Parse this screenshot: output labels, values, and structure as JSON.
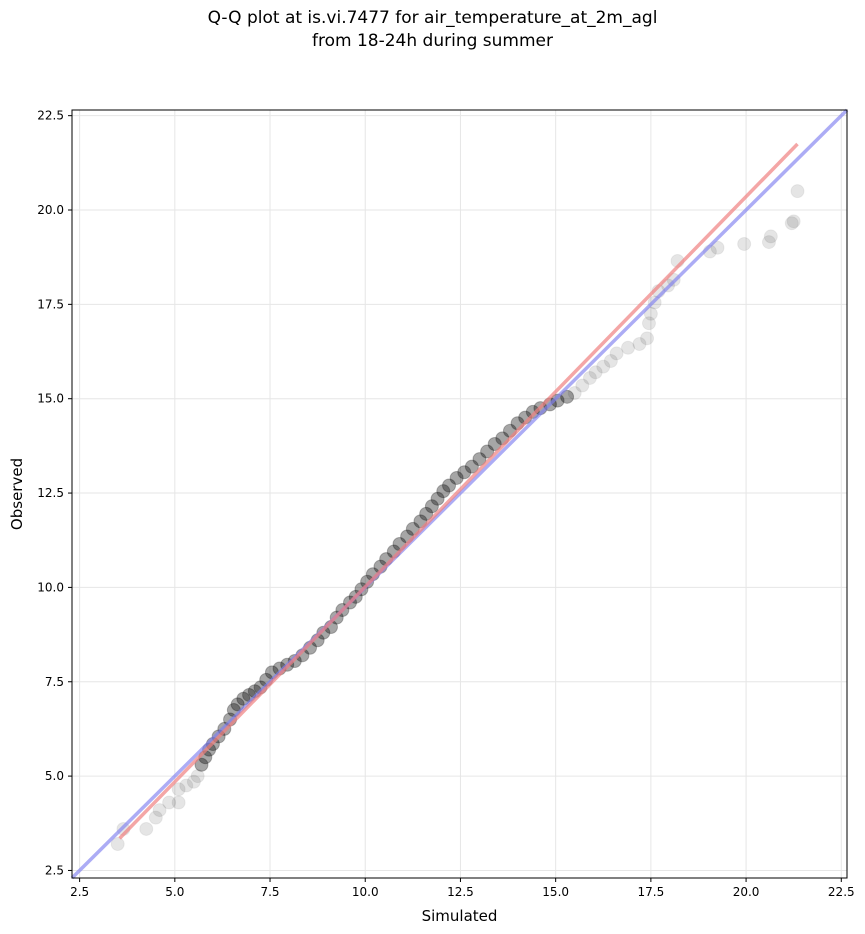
{
  "chart_data": {
    "type": "scatter",
    "title_line1": "Q-Q plot at is.vi.7477 for air_temperature_at_2m_agl",
    "title_line2": "from 18-24h during summer",
    "xlabel": "Simulated",
    "ylabel": "Observed",
    "xlim": [
      2.3,
      22.65
    ],
    "ylim": [
      2.3,
      22.65
    ],
    "xticks": [
      "2.5",
      "5.0",
      "7.5",
      "10.0",
      "12.5",
      "15.0",
      "17.5",
      "20.0",
      "22.5"
    ],
    "yticks": [
      "2.5",
      "5.0",
      "7.5",
      "10.0",
      "12.5",
      "15.0",
      "17.5",
      "20.0",
      "22.5"
    ],
    "tick_values": [
      2.5,
      5.0,
      7.5,
      10.0,
      12.5,
      15.0,
      17.5,
      20.0,
      22.5
    ],
    "grid": true,
    "colors": {
      "points": "#000000",
      "fit_line": "#f08080",
      "identity_line": "#8080f0"
    },
    "fit_line": {
      "x": [
        3.55,
        21.35
      ],
      "y": [
        3.35,
        21.75
      ]
    },
    "identity_line": {
      "x": [
        2.3,
        22.65
      ],
      "y": [
        2.3,
        22.65
      ]
    },
    "points": [
      [
        3.5,
        3.2
      ],
      [
        3.65,
        3.6
      ],
      [
        4.25,
        3.6
      ],
      [
        4.5,
        3.9
      ],
      [
        4.6,
        4.1
      ],
      [
        4.85,
        4.3
      ],
      [
        5.1,
        4.3
      ],
      [
        5.1,
        4.65
      ],
      [
        5.3,
        4.75
      ],
      [
        5.5,
        4.85
      ],
      [
        5.6,
        5.0
      ],
      [
        5.7,
        5.3
      ],
      [
        5.8,
        5.5
      ],
      [
        5.9,
        5.7
      ],
      [
        6.0,
        5.85
      ],
      [
        6.15,
        6.05
      ],
      [
        6.3,
        6.25
      ],
      [
        6.45,
        6.5
      ],
      [
        6.55,
        6.75
      ],
      [
        6.65,
        6.9
      ],
      [
        6.8,
        7.05
      ],
      [
        6.95,
        7.15
      ],
      [
        7.1,
        7.25
      ],
      [
        7.25,
        7.35
      ],
      [
        7.4,
        7.55
      ],
      [
        7.55,
        7.75
      ],
      [
        7.75,
        7.85
      ],
      [
        7.95,
        7.95
      ],
      [
        8.15,
        8.05
      ],
      [
        8.35,
        8.2
      ],
      [
        8.55,
        8.4
      ],
      [
        8.75,
        8.6
      ],
      [
        8.9,
        8.8
      ],
      [
        9.1,
        8.95
      ],
      [
        9.25,
        9.2
      ],
      [
        9.4,
        9.4
      ],
      [
        9.6,
        9.6
      ],
      [
        9.75,
        9.75
      ],
      [
        9.9,
        9.95
      ],
      [
        10.05,
        10.15
      ],
      [
        10.2,
        10.35
      ],
      [
        10.4,
        10.55
      ],
      [
        10.55,
        10.75
      ],
      [
        10.75,
        10.95
      ],
      [
        10.9,
        11.15
      ],
      [
        11.1,
        11.35
      ],
      [
        11.25,
        11.55
      ],
      [
        11.45,
        11.75
      ],
      [
        11.6,
        11.95
      ],
      [
        11.75,
        12.15
      ],
      [
        11.9,
        12.35
      ],
      [
        12.05,
        12.55
      ],
      [
        12.2,
        12.7
      ],
      [
        12.4,
        12.9
      ],
      [
        12.6,
        13.05
      ],
      [
        12.8,
        13.2
      ],
      [
        13.0,
        13.4
      ],
      [
        13.2,
        13.6
      ],
      [
        13.4,
        13.8
      ],
      [
        13.6,
        13.95
      ],
      [
        13.8,
        14.15
      ],
      [
        14.0,
        14.35
      ],
      [
        14.2,
        14.5
      ],
      [
        14.4,
        14.65
      ],
      [
        14.6,
        14.75
      ],
      [
        14.85,
        14.85
      ],
      [
        15.05,
        14.95
      ],
      [
        15.3,
        15.05
      ],
      [
        15.5,
        15.15
      ],
      [
        15.7,
        15.35
      ],
      [
        15.9,
        15.55
      ],
      [
        16.05,
        15.7
      ],
      [
        16.25,
        15.85
      ],
      [
        16.45,
        16.0
      ],
      [
        16.6,
        16.2
      ],
      [
        16.9,
        16.35
      ],
      [
        17.2,
        16.45
      ],
      [
        17.4,
        16.6
      ],
      [
        17.45,
        17.0
      ],
      [
        17.5,
        17.25
      ],
      [
        17.6,
        17.55
      ],
      [
        17.7,
        17.85
      ],
      [
        17.95,
        18.0
      ],
      [
        18.1,
        18.15
      ],
      [
        18.2,
        18.65
      ],
      [
        19.05,
        18.9
      ],
      [
        19.25,
        19.0
      ],
      [
        19.95,
        19.1
      ],
      [
        20.6,
        19.15
      ],
      [
        20.65,
        19.3
      ],
      [
        21.2,
        19.65
      ],
      [
        21.25,
        19.7
      ],
      [
        21.35,
        20.5
      ]
    ]
  }
}
